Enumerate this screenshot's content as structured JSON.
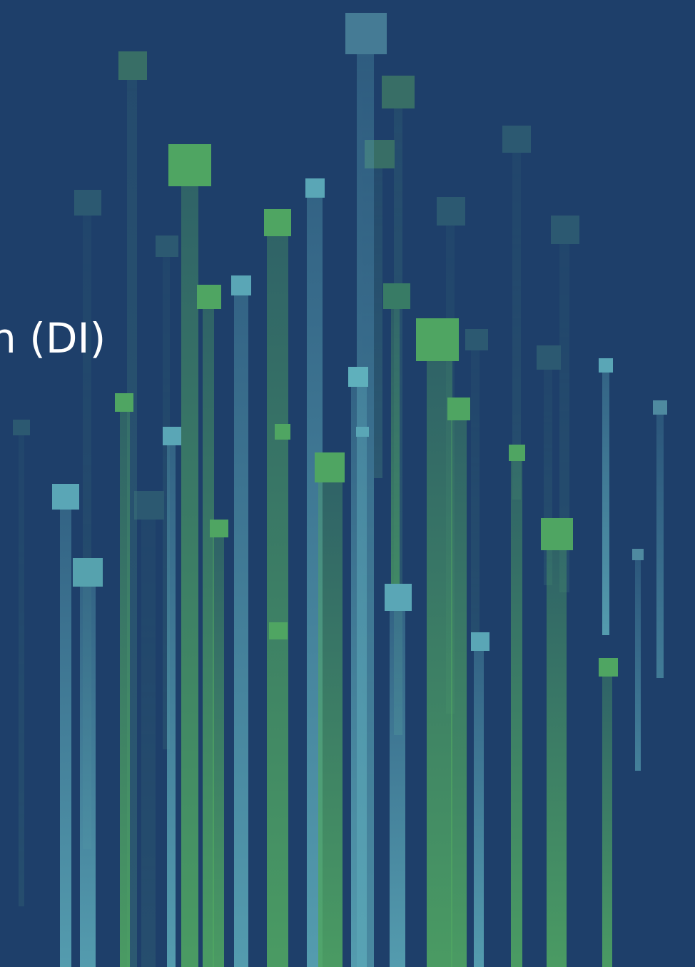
{
  "slide": {
    "title_fragment": "n (DI)",
    "background_color": "#1e3f6a",
    "title_color": "#ffffff"
  },
  "art": {
    "palette": {
      "teal": "#5aa6b6",
      "green": "#4fa562",
      "dark_teal": "#3e7a7a"
    }
  }
}
